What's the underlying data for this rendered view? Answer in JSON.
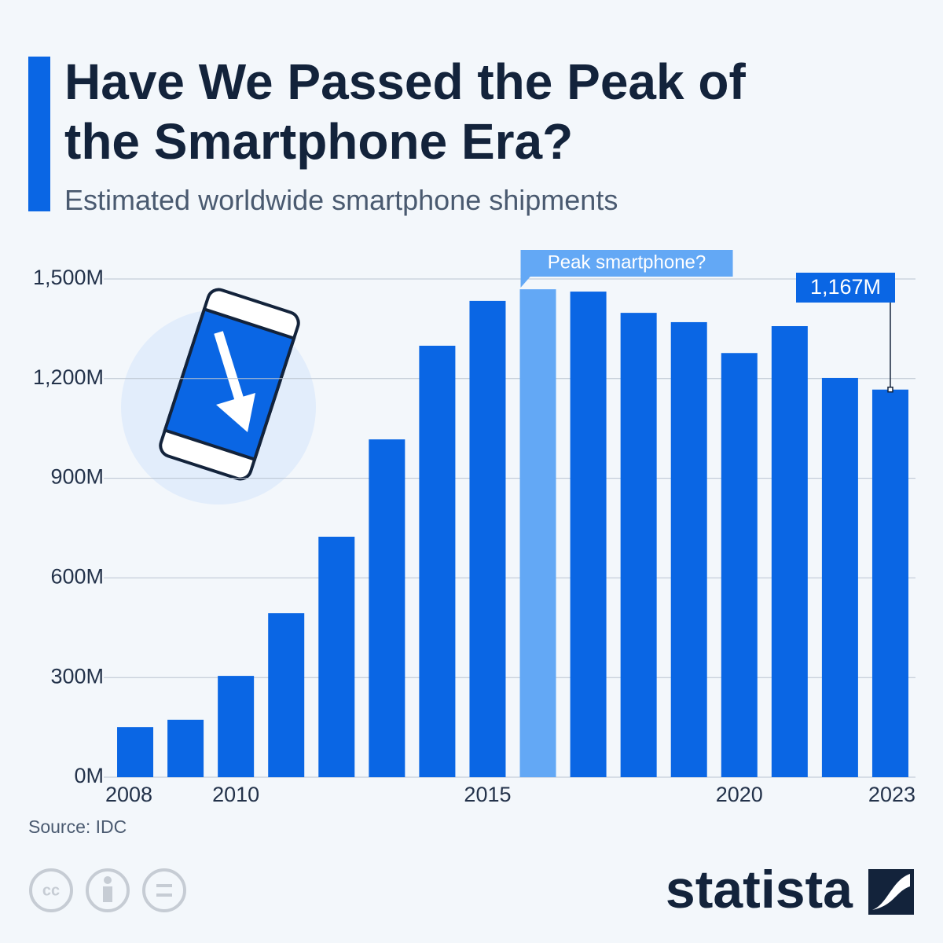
{
  "chart_data": {
    "type": "bar",
    "title": "Have We Passed the Peak of the Smartphone Era?",
    "subtitle": "Estimated worldwide smartphone shipments",
    "categories": [
      "2008",
      null,
      "2010",
      null,
      null,
      null,
      null,
      "2015",
      null,
      null,
      null,
      null,
      "2020",
      null,
      null,
      "2023"
    ],
    "values": [
      151,
      173,
      305,
      494,
      724,
      1017,
      1299,
      1434,
      1469,
      1462,
      1398,
      1370,
      1277,
      1358,
      1202,
      1167
    ],
    "value_labels": [
      null,
      null,
      null,
      null,
      null,
      null,
      null,
      null,
      null,
      null,
      null,
      null,
      null,
      null,
      null,
      "1,167M"
    ],
    "colors": [
      "#0a66e4",
      "#0a66e4",
      "#0a66e4",
      "#0a66e4",
      "#0a66e4",
      "#0a66e4",
      "#0a66e4",
      "#0a66e4",
      "#63a8f5",
      "#0a66e4",
      "#0a66e4",
      "#0a66e4",
      "#0a66e4",
      "#0a66e4",
      "#0a66e4",
      "#0a66e4"
    ],
    "annotation": {
      "text": "Peak smartphone?",
      "category_index": 8
    },
    "ylim": [
      0,
      1500
    ],
    "yticks": [
      {
        "value": 0,
        "label": "0M"
      },
      {
        "value": 300,
        "label": "300M"
      },
      {
        "value": 600,
        "label": "600M"
      },
      {
        "value": 900,
        "label": "900M"
      },
      {
        "value": 1200,
        "label": "1,200M"
      },
      {
        "value": 1500,
        "label": "1,500M"
      }
    ],
    "grid": true,
    "source": "Source: IDC",
    "brand": "statista"
  }
}
